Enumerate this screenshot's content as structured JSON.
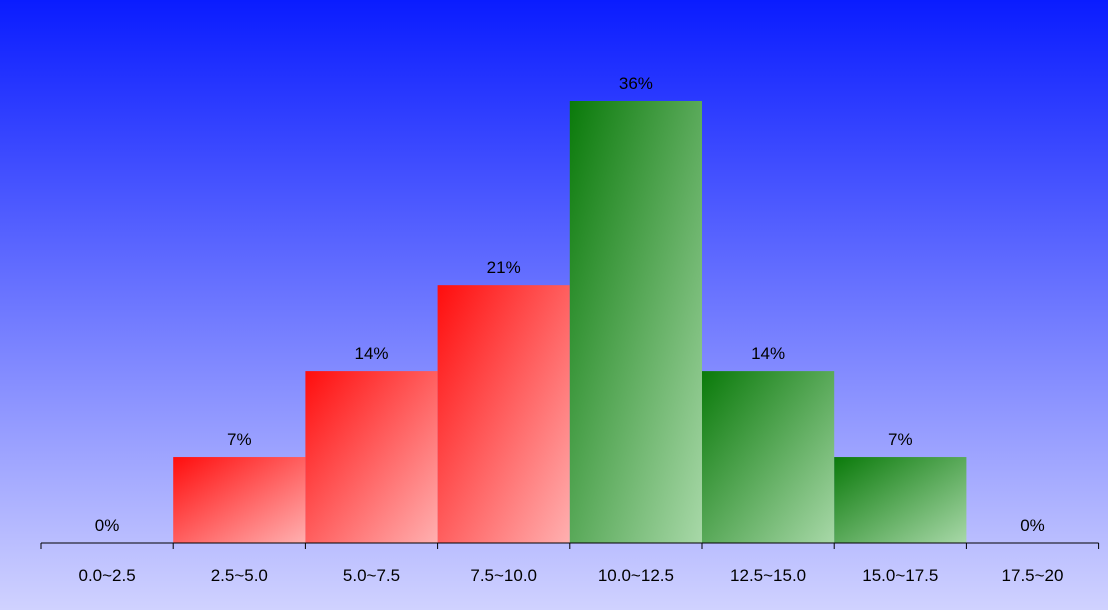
{
  "chart_data": {
    "type": "bar",
    "categories": [
      "0.0~2.5",
      "2.5~5.0",
      "5.0~7.5",
      "7.5~10.0",
      "10.0~12.5",
      "12.5~15.0",
      "15.0~17.5",
      "17.5~20"
    ],
    "values": [
      0,
      7,
      14,
      21,
      36,
      14,
      7,
      0
    ],
    "value_labels": [
      "0%",
      "7%",
      "14%",
      "21%",
      "36%",
      "14%",
      "7%",
      "0%"
    ],
    "bar_colors": [
      "red",
      "red",
      "red",
      "red",
      "green",
      "green",
      "green",
      "green"
    ],
    "ylim": [
      0,
      36
    ],
    "grid": false,
    "legend": "none",
    "title": "",
    "xlabel": "",
    "ylabel": ""
  },
  "colors": {
    "background_top": "#0a1cff",
    "background_bottom": "#d0d2ff",
    "red_dark": "#ff0d0d",
    "red_light": "#ffb0b0",
    "green_dark": "#0a7a0a",
    "green_light": "#a8d8a8",
    "axis": "#000000"
  }
}
